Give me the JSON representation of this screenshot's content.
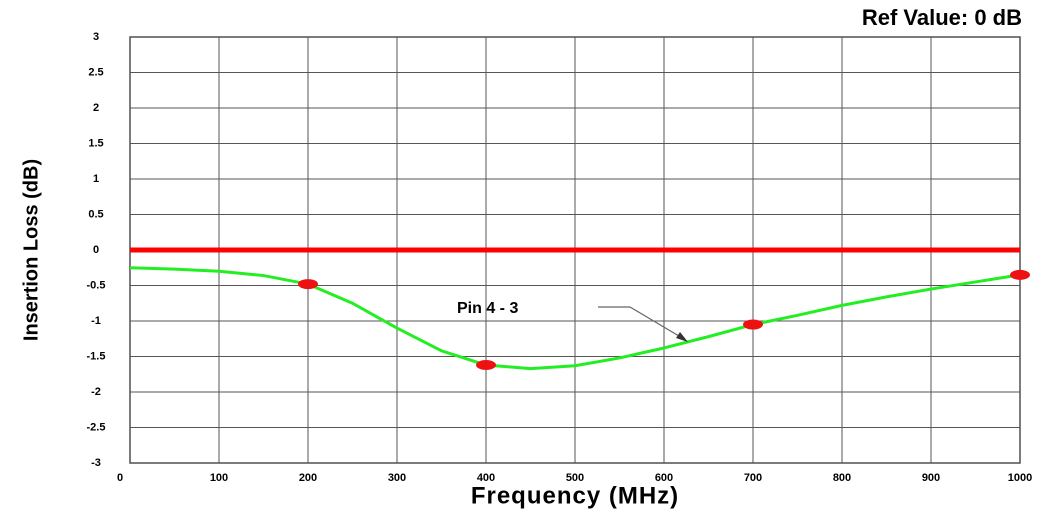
{
  "chart_data": {
    "type": "line",
    "title": "Ref Value: 0 dB",
    "xlabel": "Frequency (MHz)",
    "ylabel": "Insertion Loss (dB)",
    "ref_value": 0,
    "ref_color": "#ff0000",
    "xlim": [
      0,
      1000
    ],
    "ylim": [
      -3,
      3
    ],
    "xticks": [
      0,
      100,
      200,
      300,
      400,
      500,
      600,
      700,
      800,
      900,
      1000
    ],
    "yticks": [
      3,
      2.5,
      2,
      1.5,
      1,
      0.5,
      0,
      -0.5,
      -1,
      -1.5,
      -2,
      -2.5,
      -3
    ],
    "grid": true,
    "series": [
      {
        "name": "Pin 4 - 3",
        "color": "#22ee22",
        "x": [
          0,
          50,
          100,
          150,
          200,
          250,
          300,
          350,
          400,
          450,
          500,
          550,
          600,
          650,
          700,
          750,
          800,
          850,
          900,
          950,
          1000
        ],
        "values": [
          -0.25,
          -0.27,
          -0.3,
          -0.36,
          -0.48,
          -0.75,
          -1.1,
          -1.42,
          -1.62,
          -1.67,
          -1.63,
          -1.52,
          -1.38,
          -1.22,
          -1.05,
          -0.92,
          -0.78,
          -0.66,
          -0.55,
          -0.45,
          -0.35
        ]
      }
    ],
    "markers": {
      "color": "#ee1111",
      "x": [
        200,
        400,
        700,
        1000
      ],
      "values": [
        -0.48,
        -1.62,
        -1.05,
        -0.35
      ]
    }
  }
}
